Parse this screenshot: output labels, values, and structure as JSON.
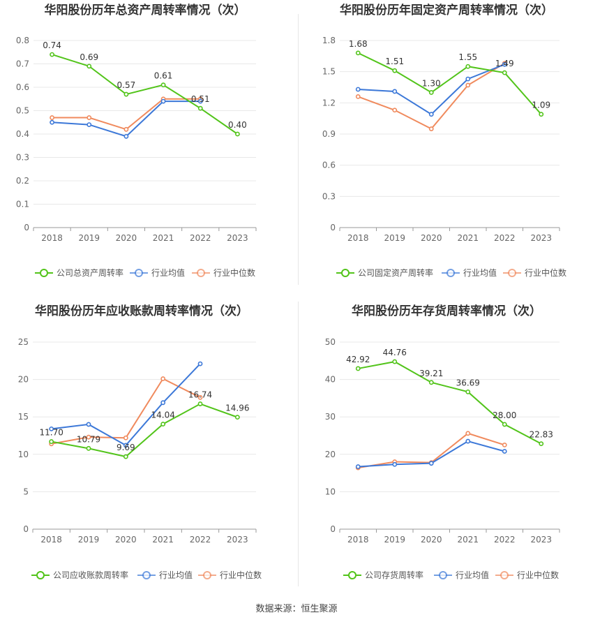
{
  "source_text": "数据来源：恒生聚源",
  "colors": {
    "company": "#52c41a",
    "industry_avg": "#3c78d8",
    "industry_median": "#f08a5d",
    "grid": "#e8e8e8",
    "axis": "#999999",
    "text": "#555555",
    "title": "#333333"
  },
  "chart_data": [
    {
      "type": "line",
      "title": "华阳股份历年总资产周转率情况（次）",
      "categories": [
        "2018",
        "2019",
        "2020",
        "2021",
        "2022",
        "2023"
      ],
      "ylim": [
        0,
        0.8
      ],
      "yticks": [
        0,
        0.1,
        0.2,
        0.3,
        0.4,
        0.5,
        0.6,
        0.7,
        0.8
      ],
      "ytick_labels": [
        "0",
        "0.1",
        "0.2",
        "0.3",
        "0.4",
        "0.5",
        "0.6",
        "0.7",
        "0.8"
      ],
      "grid": true,
      "legend_position": "bottom",
      "series": [
        {
          "name": "公司总资产周转率",
          "role": "company",
          "values": [
            0.74,
            0.69,
            0.57,
            0.61,
            0.51,
            0.4
          ],
          "labels": [
            "0.74",
            "0.69",
            "0.57",
            "0.61",
            "0.51",
            "0.40"
          ]
        },
        {
          "name": "行业均值",
          "role": "industry_avg",
          "values": [
            0.45,
            0.44,
            0.39,
            0.54,
            0.54,
            null
          ]
        },
        {
          "name": "行业中位数",
          "role": "industry_median",
          "values": [
            0.47,
            0.47,
            0.42,
            0.55,
            0.55,
            null
          ]
        }
      ]
    },
    {
      "type": "line",
      "title": "华阳股份历年固定资产周转率情况（次）",
      "categories": [
        "2018",
        "2019",
        "2020",
        "2021",
        "2022",
        "2023"
      ],
      "ylim": [
        0,
        1.8
      ],
      "yticks": [
        0,
        0.3,
        0.6,
        0.9,
        1.2,
        1.5,
        1.8
      ],
      "ytick_labels": [
        "0",
        "0.3",
        "0.6",
        "0.9",
        "1.2",
        "1.5",
        "1.8"
      ],
      "grid": true,
      "legend_position": "bottom",
      "series": [
        {
          "name": "公司固定资产周转率",
          "role": "company",
          "values": [
            1.68,
            1.51,
            1.3,
            1.55,
            1.49,
            1.09
          ],
          "labels": [
            "1.68",
            "1.51",
            "1.30",
            "1.55",
            "1.49",
            "1.09"
          ]
        },
        {
          "name": "行业均值",
          "role": "industry_avg",
          "values": [
            1.33,
            1.31,
            1.09,
            1.43,
            1.57,
            null
          ]
        },
        {
          "name": "行业中位数",
          "role": "industry_median",
          "values": [
            1.26,
            1.13,
            0.95,
            1.37,
            1.58,
            null
          ]
        }
      ]
    },
    {
      "type": "line",
      "title": "华阳股份历年应收账款周转率情况（次）",
      "categories": [
        "2018",
        "2019",
        "2020",
        "2021",
        "2022",
        "2023"
      ],
      "ylim": [
        0,
        25
      ],
      "yticks": [
        0,
        5,
        10,
        15,
        20,
        25
      ],
      "ytick_labels": [
        "0",
        "5",
        "10",
        "15",
        "20",
        "25"
      ],
      "grid": true,
      "legend_position": "bottom",
      "series": [
        {
          "name": "公司应收账款周转率",
          "role": "company",
          "values": [
            11.7,
            10.79,
            9.69,
            14.04,
            16.74,
            14.96
          ],
          "labels": [
            "11.70",
            "10.79",
            "9.69",
            "14.04",
            "16.74",
            "14.96"
          ]
        },
        {
          "name": "行业均值",
          "role": "industry_avg",
          "values": [
            13.4,
            14.0,
            11.2,
            16.9,
            22.1,
            null
          ]
        },
        {
          "name": "行业中位数",
          "role": "industry_median",
          "values": [
            11.4,
            12.3,
            12.2,
            20.1,
            17.6,
            null
          ]
        }
      ]
    },
    {
      "type": "line",
      "title": "华阳股份历年存货周转率情况（次）",
      "categories": [
        "2018",
        "2019",
        "2020",
        "2021",
        "2022",
        "2023"
      ],
      "ylim": [
        0,
        50
      ],
      "yticks": [
        0,
        10,
        20,
        30,
        40,
        50
      ],
      "ytick_labels": [
        "0",
        "10",
        "20",
        "30",
        "40",
        "50"
      ],
      "grid": true,
      "legend_position": "bottom",
      "series": [
        {
          "name": "公司存货周转率",
          "role": "company",
          "values": [
            42.92,
            44.76,
            39.21,
            36.69,
            28.0,
            22.83
          ],
          "labels": [
            "42.92",
            "44.76",
            "39.21",
            "36.69",
            "28.00",
            "22.83"
          ]
        },
        {
          "name": "行业均值",
          "role": "industry_avg",
          "values": [
            16.7,
            17.3,
            17.6,
            23.5,
            20.8,
            null
          ]
        },
        {
          "name": "行业中位数",
          "role": "industry_median",
          "values": [
            16.4,
            18.0,
            17.8,
            25.6,
            22.5,
            null
          ]
        }
      ]
    }
  ]
}
